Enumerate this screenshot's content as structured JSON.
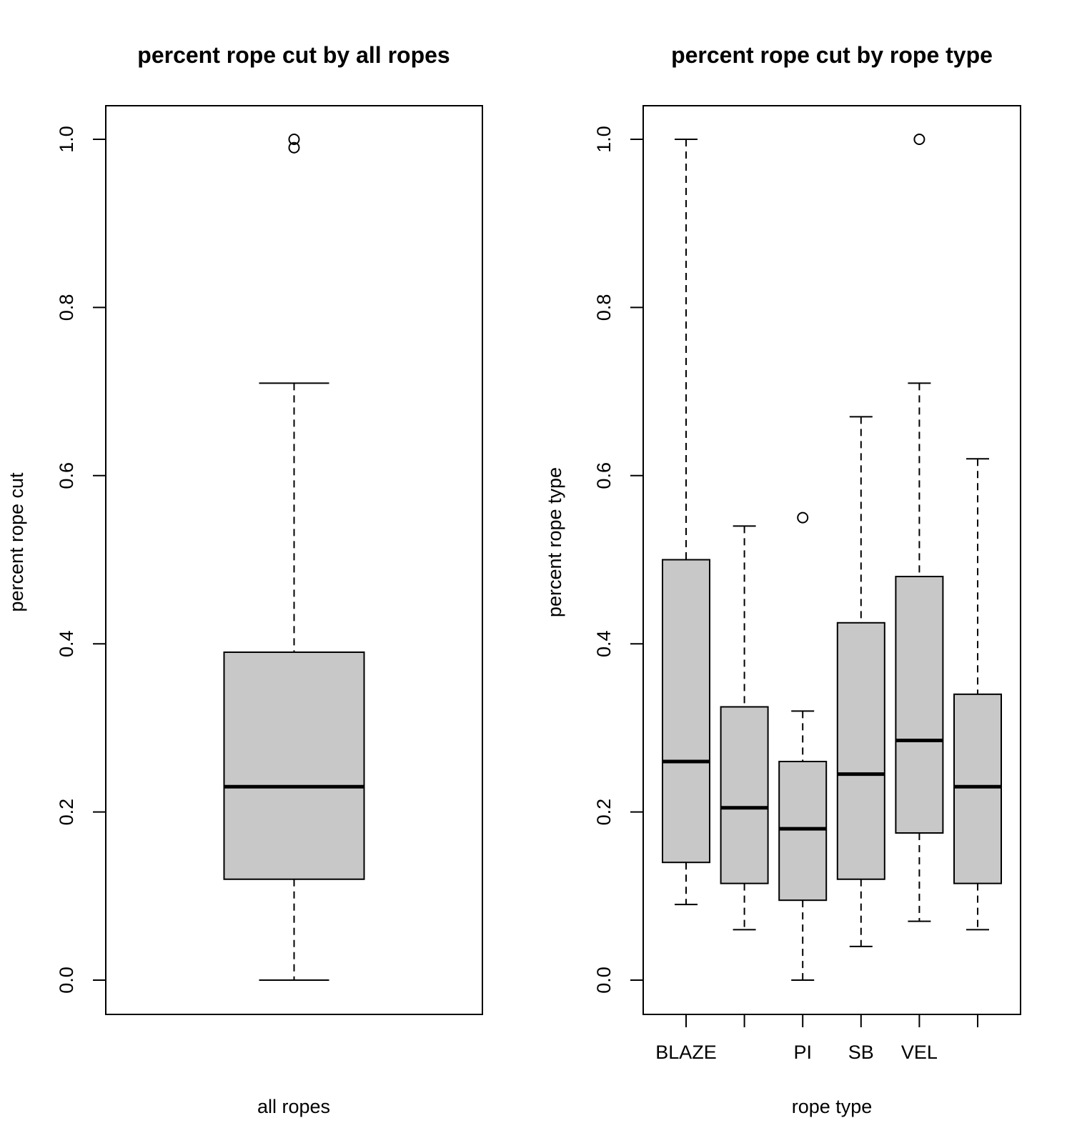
{
  "chart_data": [
    {
      "type": "box",
      "title": "percent rope cut by all ropes",
      "xlabel": "all ropes",
      "ylabel": "percent rope cut",
      "ylim": [
        0.0,
        1.0
      ],
      "yticks": [
        "0.0",
        "0.2",
        "0.4",
        "0.6",
        "0.8",
        "1.0"
      ],
      "box_color": "#c8c8c8",
      "categories": [
        ""
      ],
      "boxes": [
        {
          "min": 0.0,
          "q1": 0.12,
          "median": 0.23,
          "q3": 0.39,
          "max": 0.71,
          "outliers": [
            0.99,
            1.0
          ]
        }
      ]
    },
    {
      "type": "box",
      "title": "percent rope cut by rope type",
      "xlabel": "rope type",
      "ylabel": "percent rope type",
      "ylim": [
        0.0,
        1.0
      ],
      "yticks": [
        "0.0",
        "0.2",
        "0.4",
        "0.6",
        "0.8",
        "1.0"
      ],
      "box_color": "#c8c8c8",
      "categories": [
        "BLAZE",
        "",
        "PI",
        "SB",
        "VEL",
        ""
      ],
      "boxes": [
        {
          "min": 0.09,
          "q1": 0.14,
          "median": 0.26,
          "q3": 0.5,
          "max": 1.0,
          "outliers": []
        },
        {
          "min": 0.06,
          "q1": 0.115,
          "median": 0.205,
          "q3": 0.325,
          "max": 0.54,
          "outliers": []
        },
        {
          "min": 0.0,
          "q1": 0.095,
          "median": 0.18,
          "q3": 0.26,
          "max": 0.32,
          "outliers": [
            0.55
          ]
        },
        {
          "min": 0.04,
          "q1": 0.12,
          "median": 0.245,
          "q3": 0.425,
          "max": 0.67,
          "outliers": []
        },
        {
          "min": 0.07,
          "q1": 0.175,
          "median": 0.285,
          "q3": 0.48,
          "max": 0.71,
          "outliers": [
            1.0
          ]
        },
        {
          "min": 0.06,
          "q1": 0.115,
          "median": 0.23,
          "q3": 0.34,
          "max": 0.62,
          "outliers": []
        }
      ]
    }
  ]
}
